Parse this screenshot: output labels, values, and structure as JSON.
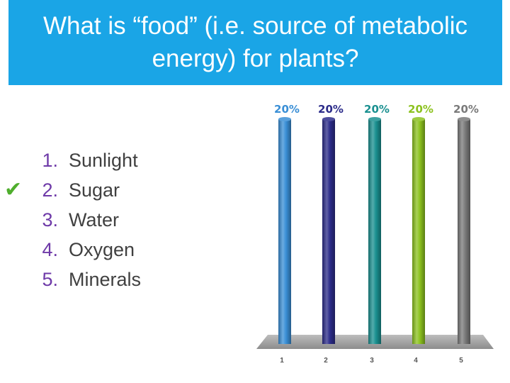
{
  "slide": {
    "title": "What is “food” (i.e. source of metabolic\nenergy) for plants?"
  },
  "answers": [
    {
      "number": "1.",
      "label": "Sunlight",
      "correct": false
    },
    {
      "number": "2.",
      "label": "Sugar",
      "correct": true
    },
    {
      "number": "3.",
      "label": "Water",
      "correct": false
    },
    {
      "number": "4.",
      "label": "Oxygen",
      "correct": false
    },
    {
      "number": "5.",
      "label": "Minerals",
      "correct": false
    }
  ],
  "correct_marker_icon": "checkmark-icon",
  "chart_data": {
    "type": "bar",
    "categories": [
      "1",
      "2",
      "3",
      "4",
      "5"
    ],
    "values": [
      20,
      20,
      20,
      20,
      20
    ],
    "value_labels": [
      "20%",
      "20%",
      "20%",
      "20%",
      "20%"
    ],
    "ylim": [
      0,
      20
    ],
    "grid": false,
    "bar_colors": [
      "#3a8fd6",
      "#2c2c8a",
      "#1a9090",
      "#8cc21f",
      "#7a7a7a"
    ],
    "floor_color": "#9a9a9a"
  }
}
